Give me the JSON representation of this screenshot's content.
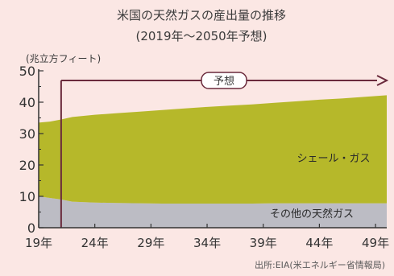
{
  "chart_data": {
    "type": "area",
    "stacked": true,
    "title": "米国の天然ガスの産出量の推移",
    "subtitle": "(2019年〜2050年予想)",
    "ylabel": "(兆立方フィート)",
    "xlabel": "",
    "ylim": [
      0,
      50
    ],
    "yticks": [
      0,
      10,
      20,
      30,
      40,
      50
    ],
    "x_range": [
      2019,
      2050
    ],
    "xtick_labels": [
      "19年",
      "24年",
      "29年",
      "34年",
      "39年",
      "44年",
      "49年"
    ],
    "grid": false,
    "forecast_label": "予想",
    "forecast_start": 2021,
    "series": [
      {
        "name": "その他の天然ガス",
        "color": "#bcbcc4",
        "x": [
          2019,
          2020,
          2021,
          2022,
          2024,
          2026,
          2028,
          2030,
          2032,
          2034,
          2036,
          2038,
          2040,
          2042,
          2044,
          2046,
          2048,
          2050
        ],
        "values": [
          10.0,
          9.5,
          9.0,
          8.3,
          8.0,
          7.9,
          7.8,
          7.7,
          7.7,
          7.7,
          7.7,
          7.7,
          7.8,
          7.8,
          7.8,
          7.8,
          7.8,
          7.8
        ]
      },
      {
        "name": "シェール・ガス",
        "color": "#b6b82a",
        "x": [
          2019,
          2020,
          2021,
          2022,
          2024,
          2026,
          2028,
          2030,
          2032,
          2034,
          2036,
          2038,
          2040,
          2042,
          2044,
          2046,
          2048,
          2050
        ],
        "values": [
          23.5,
          24.3,
          25.5,
          27.0,
          28.0,
          28.6,
          29.2,
          29.8,
          30.3,
          30.8,
          31.2,
          31.6,
          32.0,
          32.5,
          33.0,
          33.4,
          33.9,
          34.4
        ]
      }
    ],
    "source": "出所:EIA(米エネルギー省情報局)"
  }
}
